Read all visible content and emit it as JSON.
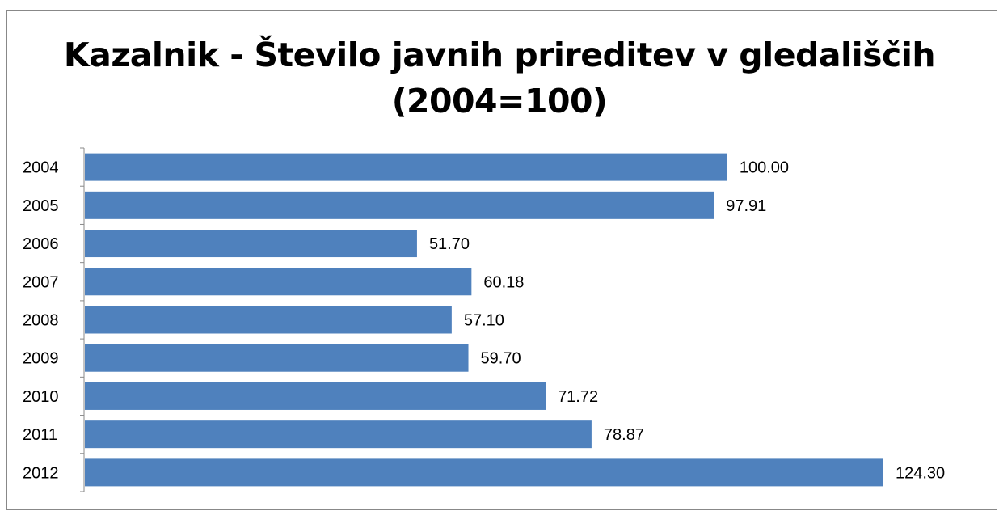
{
  "chart_data": {
    "type": "bar",
    "orientation": "horizontal",
    "title_lines": [
      "Kazalnik - Število javnih prireditev v gledališčih",
      "(2004=100)"
    ],
    "categories": [
      "2004",
      "2005",
      "2006",
      "2007",
      "2008",
      "2009",
      "2010",
      "2011",
      "2012"
    ],
    "values": [
      100.0,
      97.91,
      51.7,
      60.18,
      57.1,
      59.7,
      71.72,
      78.87,
      124.3
    ],
    "value_labels": [
      "100.00",
      "97.91",
      "51.70",
      "60.18",
      "57.10",
      "59.70",
      "71.72",
      "78.87",
      "124.30"
    ],
    "xlabel": "",
    "ylabel": "",
    "xlim": [
      0,
      124.3
    ],
    "grid": false,
    "legend": "none",
    "bar_color": "#4F81BD"
  }
}
